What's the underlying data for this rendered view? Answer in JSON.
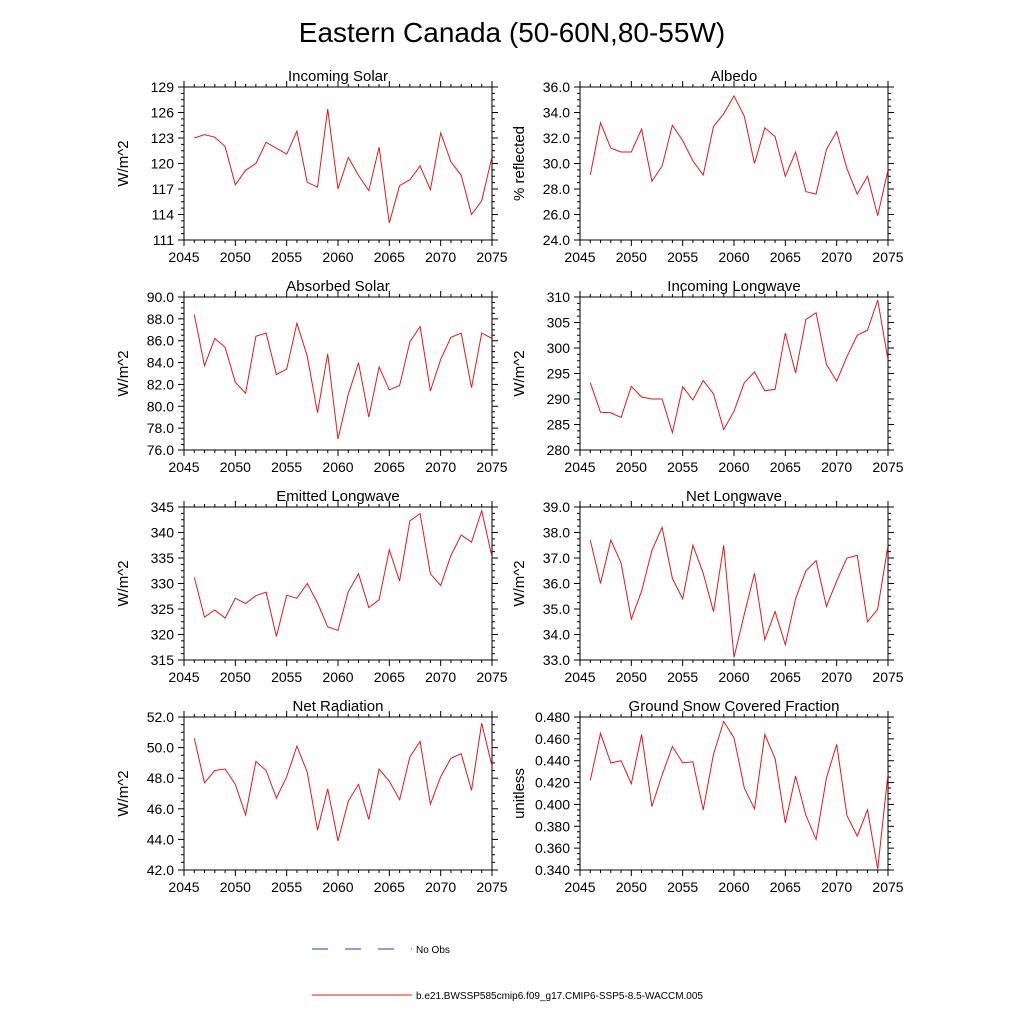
{
  "title": "Eastern Canada (50-60N,80-55W)",
  "series_color": "#e31a1c",
  "obs_color": "#2a3fa8",
  "legend": {
    "obs_label": "No Obs",
    "model_label": "b.e21.BWSSP585cmip6.f09_g17.CMIP6-SSP5-8.5-WACCM.005"
  },
  "chart_data": [
    {
      "type": "line",
      "title": "Incoming Solar",
      "ylabel": "W/m^2",
      "xlim": [
        2045,
        2075
      ],
      "ylim": [
        111,
        129
      ],
      "yticks": [
        111,
        114,
        117,
        120,
        123,
        126,
        129
      ],
      "ytick_labels": [
        "111",
        "114",
        "117",
        "120",
        "123",
        "126",
        "129"
      ],
      "xticks": [
        2045,
        2050,
        2055,
        2060,
        2065,
        2070,
        2075
      ],
      "x": [
        2046,
        2047,
        2048,
        2049,
        2050,
        2051,
        2052,
        2053,
        2054,
        2055,
        2056,
        2057,
        2058,
        2059,
        2060,
        2061,
        2062,
        2063,
        2064,
        2065,
        2066,
        2067,
        2068,
        2069,
        2070,
        2071,
        2072,
        2073,
        2074,
        2075
      ],
      "values": [
        123.0,
        123.4,
        123.1,
        122.0,
        117.5,
        119.2,
        120.0,
        122.5,
        121.8,
        121.1,
        123.8,
        117.8,
        117.2,
        126.4,
        117.0,
        120.7,
        118.6,
        116.8,
        121.9,
        113.0,
        117.4,
        118.1,
        119.7,
        116.9,
        123.6,
        120.2,
        118.6,
        114.0,
        115.6,
        120.8
      ]
    },
    {
      "type": "line",
      "title": "Albedo",
      "ylabel": "% reflected",
      "xlim": [
        2045,
        2075
      ],
      "ylim": [
        24,
        36
      ],
      "yticks": [
        24,
        26,
        28,
        30,
        32,
        34,
        36
      ],
      "ytick_labels": [
        "24.0",
        "26.0",
        "28.0",
        "30.0",
        "32.0",
        "34.0",
        "36.0"
      ],
      "xticks": [
        2045,
        2050,
        2055,
        2060,
        2065,
        2070,
        2075
      ],
      "x": [
        2046,
        2047,
        2048,
        2049,
        2050,
        2051,
        2052,
        2053,
        2054,
        2055,
        2056,
        2057,
        2058,
        2059,
        2060,
        2061,
        2062,
        2063,
        2064,
        2065,
        2066,
        2067,
        2068,
        2069,
        2070,
        2071,
        2072,
        2073,
        2074,
        2075
      ],
      "values": [
        29.1,
        33.2,
        31.2,
        30.9,
        30.9,
        32.7,
        28.6,
        29.8,
        33.0,
        31.8,
        30.2,
        29.1,
        32.9,
        33.9,
        35.3,
        33.7,
        30.0,
        32.8,
        32.1,
        29.0,
        30.9,
        27.8,
        27.6,
        31.1,
        32.5,
        29.6,
        27.6,
        29.0,
        25.9,
        29.5
      ]
    },
    {
      "type": "line",
      "title": "Absorbed Solar",
      "ylabel": "W/m^2",
      "xlim": [
        2045,
        2075
      ],
      "ylim": [
        76,
        90
      ],
      "yticks": [
        76,
        78,
        80,
        82,
        84,
        86,
        88,
        90
      ],
      "ytick_labels": [
        "76.0",
        "78.0",
        "80.0",
        "82.0",
        "84.0",
        "86.0",
        "88.0",
        "90.0"
      ],
      "xticks": [
        2045,
        2050,
        2055,
        2060,
        2065,
        2070,
        2075
      ],
      "x": [
        2046,
        2047,
        2048,
        2049,
        2050,
        2051,
        2052,
        2053,
        2054,
        2055,
        2056,
        2057,
        2058,
        2059,
        2060,
        2061,
        2062,
        2063,
        2064,
        2065,
        2066,
        2067,
        2068,
        2069,
        2070,
        2071,
        2072,
        2073,
        2074,
        2075
      ],
      "values": [
        88.4,
        83.7,
        86.2,
        85.4,
        82.2,
        81.2,
        86.4,
        86.7,
        82.9,
        83.4,
        87.6,
        84.6,
        79.4,
        84.8,
        77.0,
        81.1,
        84.0,
        79.0,
        83.6,
        81.5,
        81.9,
        85.9,
        87.3,
        81.4,
        84.3,
        86.3,
        86.7,
        81.7,
        86.7,
        86.2
      ]
    },
    {
      "type": "line",
      "title": "Incoming Longwave",
      "ylabel": "W/m^2",
      "xlim": [
        2045,
        2075
      ],
      "ylim": [
        280,
        310
      ],
      "yticks": [
        280,
        285,
        290,
        295,
        300,
        305,
        310
      ],
      "ytick_labels": [
        "280",
        "285",
        "290",
        "295",
        "300",
        "305",
        "310"
      ],
      "xticks": [
        2045,
        2050,
        2055,
        2060,
        2065,
        2070,
        2075
      ],
      "x": [
        2046,
        2047,
        2048,
        2049,
        2050,
        2051,
        2052,
        2053,
        2054,
        2055,
        2056,
        2057,
        2058,
        2059,
        2060,
        2061,
        2062,
        2063,
        2064,
        2065,
        2066,
        2067,
        2068,
        2069,
        2070,
        2071,
        2072,
        2073,
        2074,
        2075
      ],
      "values": [
        293.2,
        287.4,
        287.3,
        286.4,
        292.5,
        290.4,
        290.0,
        290.0,
        283.4,
        292.4,
        289.8,
        293.6,
        291.0,
        284.0,
        287.6,
        293.2,
        295.3,
        291.6,
        291.9,
        302.9,
        295.1,
        305.6,
        306.9,
        296.8,
        293.5,
        298.3,
        302.5,
        303.5,
        309.4,
        297.7
      ]
    },
    {
      "type": "line",
      "title": "Emitted Longwave",
      "ylabel": "W/m^2",
      "xlim": [
        2045,
        2075
      ],
      "ylim": [
        315,
        345
      ],
      "yticks": [
        315,
        320,
        325,
        330,
        335,
        340,
        345
      ],
      "ytick_labels": [
        "315",
        "320",
        "325",
        "330",
        "335",
        "340",
        "345"
      ],
      "xticks": [
        2045,
        2050,
        2055,
        2060,
        2065,
        2070,
        2075
      ],
      "x": [
        2046,
        2047,
        2048,
        2049,
        2050,
        2051,
        2052,
        2053,
        2054,
        2055,
        2056,
        2057,
        2058,
        2059,
        2060,
        2061,
        2062,
        2063,
        2064,
        2065,
        2066,
        2067,
        2068,
        2069,
        2070,
        2071,
        2072,
        2073,
        2074,
        2075
      ],
      "values": [
        331.2,
        323.4,
        324.8,
        323.2,
        327.1,
        326.1,
        327.6,
        328.3,
        319.6,
        327.7,
        327.1,
        330.0,
        326.2,
        321.5,
        320.8,
        328.4,
        331.9,
        325.3,
        326.8,
        336.6,
        330.5,
        342.3,
        343.7,
        331.9,
        329.6,
        335.5,
        339.5,
        338.1,
        344.3,
        335.2
      ]
    },
    {
      "type": "line",
      "title": "Net Longwave",
      "ylabel": "W/m^2",
      "xlim": [
        2045,
        2075
      ],
      "ylim": [
        33,
        39
      ],
      "yticks": [
        33,
        34,
        35,
        36,
        37,
        38,
        39
      ],
      "ytick_labels": [
        "33.0",
        "34.0",
        "35.0",
        "36.0",
        "37.0",
        "38.0",
        "39.0"
      ],
      "xticks": [
        2045,
        2050,
        2055,
        2060,
        2065,
        2070,
        2075
      ],
      "x": [
        2046,
        2047,
        2048,
        2049,
        2050,
        2051,
        2052,
        2053,
        2054,
        2055,
        2056,
        2057,
        2058,
        2059,
        2060,
        2061,
        2062,
        2063,
        2064,
        2065,
        2066,
        2067,
        2068,
        2069,
        2070,
        2071,
        2072,
        2073,
        2074,
        2075
      ],
      "values": [
        37.7,
        36.0,
        37.7,
        36.8,
        34.6,
        35.7,
        37.3,
        38.2,
        36.2,
        35.4,
        37.5,
        36.4,
        34.9,
        37.5,
        33.1,
        34.8,
        36.4,
        33.8,
        34.9,
        33.6,
        35.4,
        36.5,
        36.9,
        35.1,
        36.1,
        37.0,
        37.1,
        34.5,
        35.0,
        37.5
      ]
    },
    {
      "type": "line",
      "title": "Net Radiation",
      "ylabel": "W/m^2",
      "xlim": [
        2045,
        2075
      ],
      "ylim": [
        42,
        52
      ],
      "yticks": [
        42,
        44,
        46,
        48,
        50,
        52
      ],
      "ytick_labels": [
        "42.0",
        "44.0",
        "46.0",
        "48.0",
        "50.0",
        "52.0"
      ],
      "xticks": [
        2045,
        2050,
        2055,
        2060,
        2065,
        2070,
        2075
      ],
      "x": [
        2046,
        2047,
        2048,
        2049,
        2050,
        2051,
        2052,
        2053,
        2054,
        2055,
        2056,
        2057,
        2058,
        2059,
        2060,
        2061,
        2062,
        2063,
        2064,
        2065,
        2066,
        2067,
        2068,
        2069,
        2070,
        2071,
        2072,
        2073,
        2074,
        2075
      ],
      "values": [
        50.6,
        47.7,
        48.5,
        48.6,
        47.6,
        45.6,
        49.1,
        48.5,
        46.7,
        48.1,
        50.1,
        48.4,
        44.6,
        47.3,
        43.9,
        46.5,
        47.6,
        45.3,
        48.6,
        47.8,
        46.6,
        49.4,
        50.4,
        46.3,
        48.1,
        49.3,
        49.6,
        47.2,
        51.6,
        48.8
      ]
    },
    {
      "type": "line",
      "title": "Ground Snow Covered Fraction",
      "ylabel": "unitless",
      "xlim": [
        2045,
        2075
      ],
      "ylim": [
        0.34,
        0.48
      ],
      "yticks": [
        0.34,
        0.36,
        0.38,
        0.4,
        0.42,
        0.44,
        0.46,
        0.48
      ],
      "ytick_labels": [
        "0.340",
        "0.360",
        "0.380",
        "0.400",
        "0.420",
        "0.440",
        "0.460",
        "0.480"
      ],
      "xticks": [
        2045,
        2050,
        2055,
        2060,
        2065,
        2070,
        2075
      ],
      "x": [
        2046,
        2047,
        2048,
        2049,
        2050,
        2051,
        2052,
        2053,
        2054,
        2055,
        2056,
        2057,
        2058,
        2059,
        2060,
        2061,
        2062,
        2063,
        2064,
        2065,
        2066,
        2067,
        2068,
        2069,
        2070,
        2071,
        2072,
        2073,
        2074,
        2075
      ],
      "values": [
        0.422,
        0.465,
        0.438,
        0.44,
        0.419,
        0.464,
        0.398,
        0.427,
        0.453,
        0.438,
        0.439,
        0.395,
        0.446,
        0.476,
        0.461,
        0.415,
        0.396,
        0.464,
        0.442,
        0.383,
        0.426,
        0.39,
        0.368,
        0.424,
        0.455,
        0.39,
        0.371,
        0.395,
        0.341,
        0.428
      ]
    }
  ]
}
